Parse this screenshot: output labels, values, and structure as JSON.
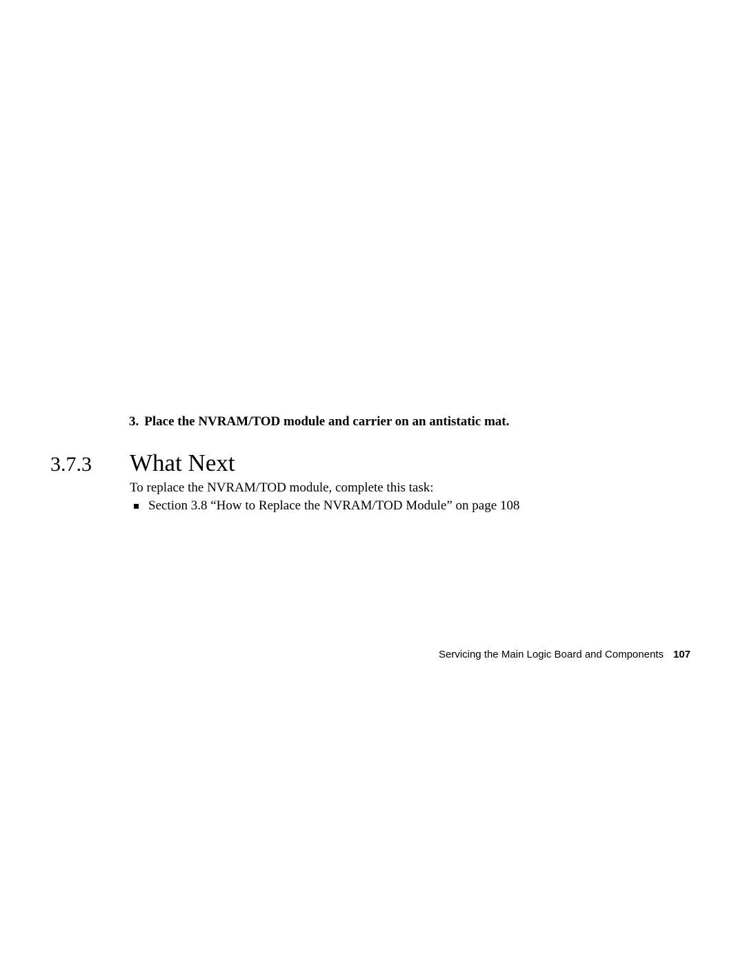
{
  "step": {
    "number": "3.",
    "text": "Place the NVRAM/TOD module and carrier on an antistatic mat."
  },
  "section": {
    "number": "3.7.3",
    "title": "What Next"
  },
  "body": {
    "intro": "To replace the NVRAM/TOD module, complete this task:",
    "bullet": "Section 3.8 “How to Replace the NVRAM/TOD Module” on page 108"
  },
  "footer": {
    "title": "Servicing the Main Logic Board and Components",
    "page": "107"
  }
}
